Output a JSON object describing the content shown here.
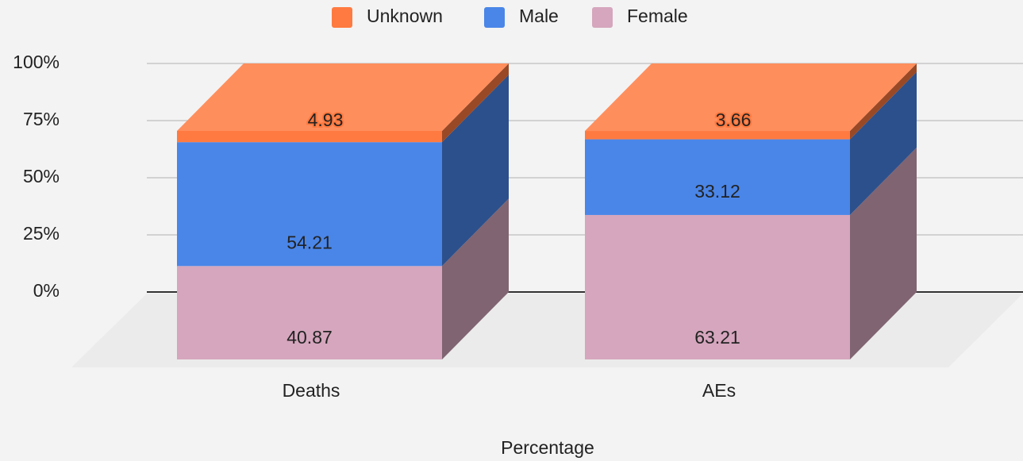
{
  "chart_data": {
    "type": "bar3d_stacked",
    "categories": [
      "Deaths",
      "AEs"
    ],
    "x_label": "Percentage",
    "series": [
      {
        "name": "Female",
        "color": "#d5a6bd",
        "values": [
          40.87,
          63.21
        ]
      },
      {
        "name": "Male",
        "color": "#4a86e8",
        "values": [
          54.21,
          33.12
        ]
      },
      {
        "name": "Unknown",
        "color": "#ff7a40",
        "values": [
          4.93,
          3.66
        ]
      }
    ],
    "ylim": [
      0,
      100
    ],
    "yticks": [
      {
        "value": 0,
        "label": "0%"
      },
      {
        "value": 25,
        "label": "25%"
      },
      {
        "value": 50,
        "label": "50%"
      },
      {
        "value": 75,
        "label": "75%"
      },
      {
        "value": 100,
        "label": "100%"
      }
    ],
    "grid": true,
    "legend": "top"
  }
}
